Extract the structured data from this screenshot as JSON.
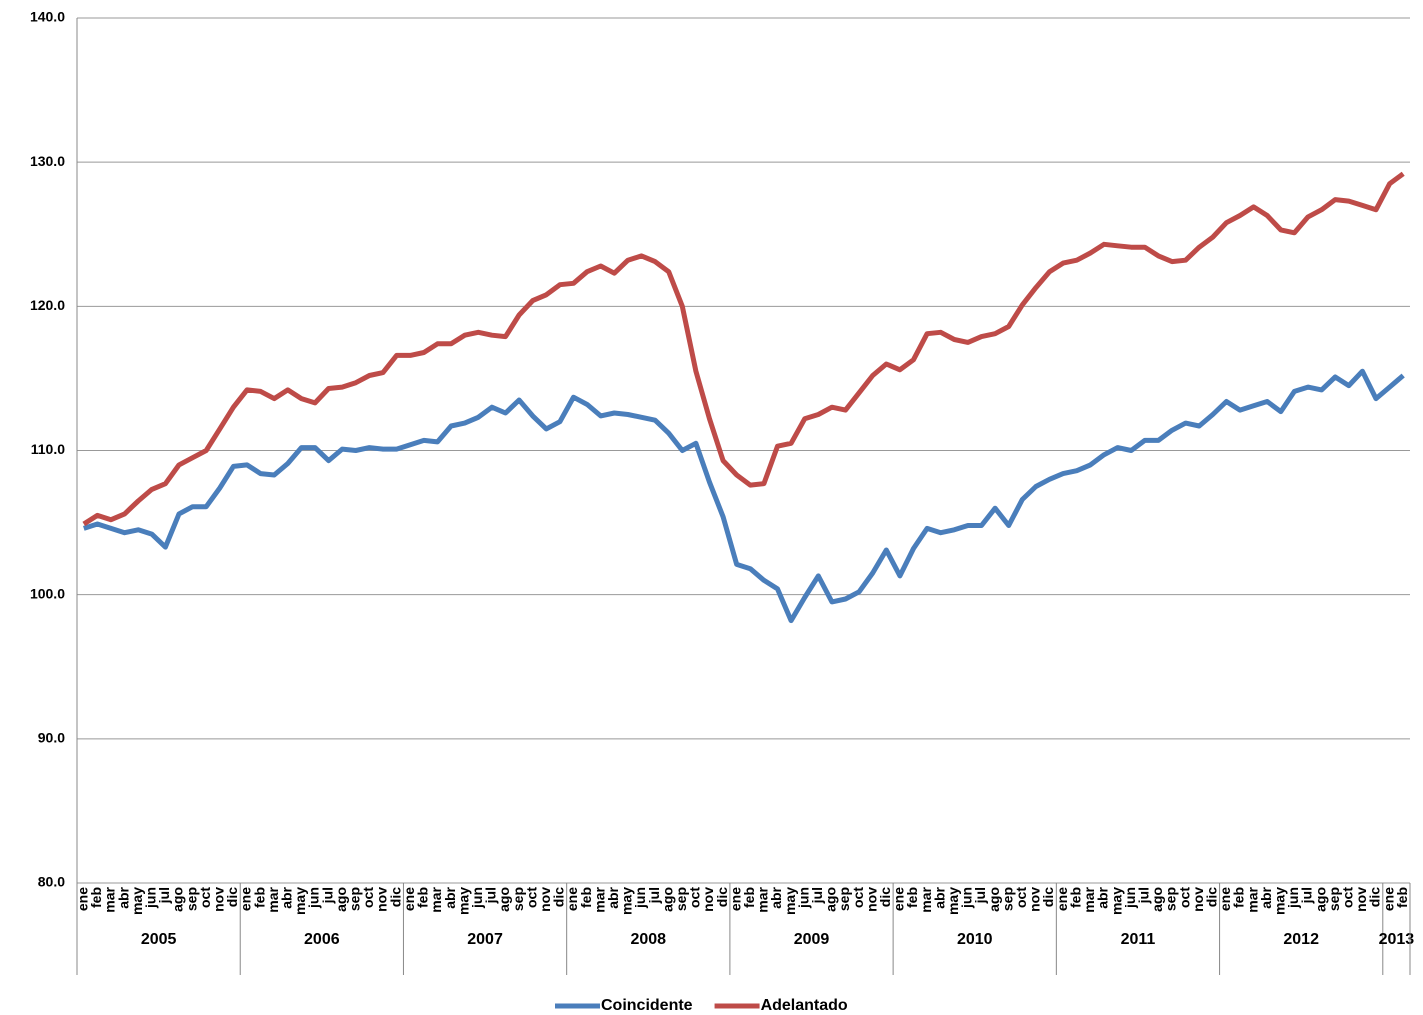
{
  "chart_data": {
    "type": "line",
    "categories": [
      "ene",
      "feb",
      "mar",
      "abr",
      "may",
      "jun",
      "jul",
      "ago",
      "sep",
      "oct",
      "nov",
      "dic",
      "ene",
      "feb",
      "mar",
      "abr",
      "may",
      "jun",
      "jul",
      "ago",
      "sep",
      "oct",
      "nov",
      "dic",
      "ene",
      "feb",
      "mar",
      "abr",
      "may",
      "jun",
      "jul",
      "ago",
      "sep",
      "oct",
      "nov",
      "dic",
      "ene",
      "feb",
      "mar",
      "abr",
      "may",
      "jun",
      "jul",
      "ago",
      "sep",
      "oct",
      "nov",
      "dic",
      "ene",
      "feb",
      "mar",
      "abr",
      "may",
      "jun",
      "jul",
      "ago",
      "sep",
      "oct",
      "nov",
      "dic",
      "ene",
      "feb",
      "mar",
      "abr",
      "may",
      "jun",
      "jul",
      "ago",
      "sep",
      "oct",
      "nov",
      "dic",
      "ene",
      "feb",
      "mar",
      "abr",
      "may",
      "jun",
      "jul",
      "ago",
      "sep",
      "oct",
      "nov",
      "dic",
      "ene",
      "feb",
      "mar",
      "abr",
      "may",
      "jun",
      "jul",
      "ago",
      "sep",
      "oct",
      "nov",
      "dic",
      "ene",
      "feb"
    ],
    "category_groups": [
      {
        "label": "2005",
        "span": 12
      },
      {
        "label": "2006",
        "span": 12
      },
      {
        "label": "2007",
        "span": 12
      },
      {
        "label": "2008",
        "span": 12
      },
      {
        "label": "2009",
        "span": 12
      },
      {
        "label": "2010",
        "span": 12
      },
      {
        "label": "2011",
        "span": 12
      },
      {
        "label": "2012",
        "span": 12
      },
      {
        "label": "2013",
        "span": 2
      }
    ],
    "series": [
      {
        "name": "Coincidente",
        "color": "#4a7ebb",
        "values": [
          104.6,
          104.9,
          104.6,
          104.3,
          104.5,
          104.2,
          103.3,
          105.6,
          106.1,
          106.1,
          107.4,
          108.9,
          109.0,
          108.4,
          108.3,
          109.1,
          110.2,
          110.2,
          109.3,
          110.1,
          110.0,
          110.2,
          110.1,
          110.1,
          110.4,
          110.7,
          110.6,
          111.7,
          111.9,
          112.3,
          113.0,
          112.6,
          113.5,
          112.4,
          111.5,
          112.0,
          113.7,
          113.2,
          112.4,
          112.6,
          112.5,
          112.3,
          112.1,
          111.2,
          110.0,
          110.5,
          107.8,
          105.4,
          102.1,
          101.8,
          101.0,
          100.4,
          98.2,
          99.8,
          101.3,
          99.5,
          99.7,
          100.2,
          101.5,
          103.1,
          101.3,
          103.2,
          104.6,
          104.3,
          104.5,
          104.8,
          104.8,
          106.0,
          104.8,
          106.6,
          107.5,
          108.0,
          108.4,
          108.6,
          109.0,
          109.7,
          110.2,
          110.0,
          110.7,
          110.7,
          111.4,
          111.9,
          111.7,
          112.5,
          113.4,
          112.8,
          113.1,
          113.4,
          112.7,
          114.1,
          114.4,
          114.2,
          115.1,
          114.5,
          115.5,
          113.6,
          114.4,
          115.2
        ]
      },
      {
        "name": "Adelantado",
        "color": "#be4b48",
        "values": [
          104.9,
          105.5,
          105.2,
          105.6,
          106.5,
          107.3,
          107.7,
          109.0,
          109.5,
          110.0,
          111.5,
          113.0,
          114.2,
          114.1,
          113.6,
          114.2,
          113.6,
          113.3,
          114.3,
          114.4,
          114.7,
          115.2,
          115.4,
          116.6,
          116.6,
          116.8,
          117.4,
          117.4,
          118.0,
          118.2,
          118.0,
          117.9,
          119.4,
          120.4,
          120.8,
          121.5,
          121.6,
          122.4,
          122.8,
          122.3,
          123.2,
          123.5,
          123.1,
          122.4,
          120.0,
          115.5,
          112.2,
          109.3,
          108.3,
          107.6,
          107.7,
          110.3,
          110.5,
          112.2,
          112.5,
          113.0,
          112.8,
          114.0,
          115.2,
          116.0,
          115.6,
          116.3,
          118.1,
          118.2,
          117.7,
          117.5,
          117.9,
          118.1,
          118.6,
          120.1,
          121.3,
          122.4,
          123.0,
          123.2,
          123.7,
          124.3,
          124.2,
          124.1,
          124.1,
          123.5,
          123.1,
          123.2,
          124.1,
          124.8,
          125.8,
          126.3,
          126.9,
          126.3,
          125.3,
          125.1,
          126.2,
          126.7,
          127.4,
          127.3,
          127.0,
          126.7,
          128.5,
          129.2
        ]
      }
    ],
    "ylim": [
      80,
      140
    ],
    "yticks": [
      {
        "value": 80,
        "label": "80.0"
      },
      {
        "value": 90,
        "label": "90.0"
      },
      {
        "value": 100,
        "label": "100.0"
      },
      {
        "value": 110,
        "label": "110.0"
      },
      {
        "value": 120,
        "label": "120.0"
      },
      {
        "value": 130,
        "label": "130.0"
      },
      {
        "value": 140,
        "label": "140.0"
      }
    ],
    "grid": true,
    "legend": "bottom"
  }
}
